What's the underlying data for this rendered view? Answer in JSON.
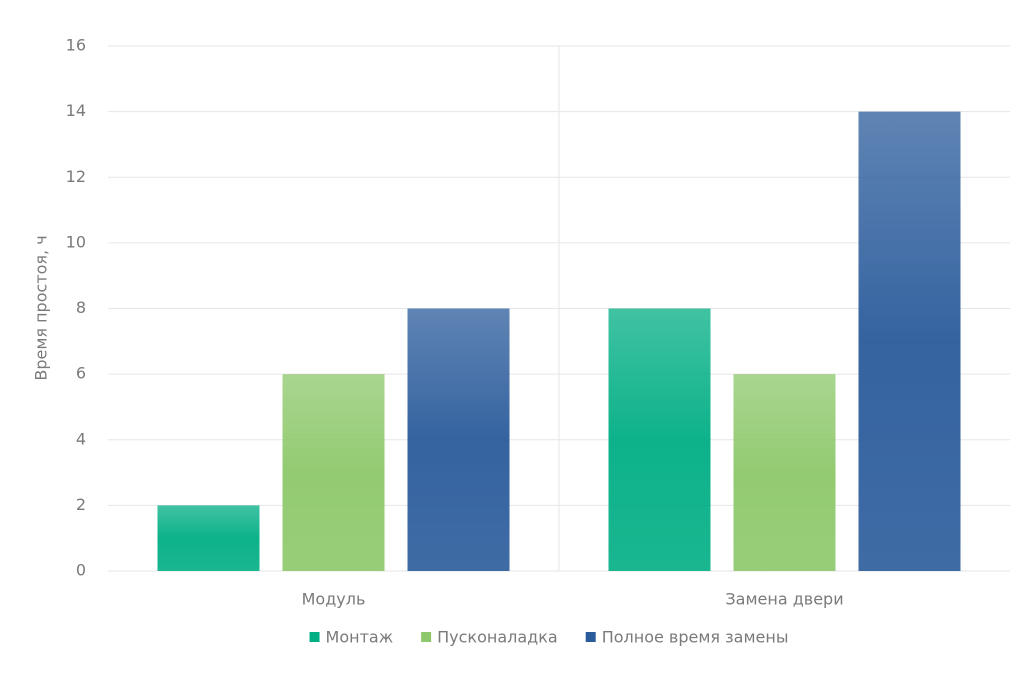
{
  "chart_data": {
    "type": "bar",
    "y_label": "Время простоя, ч",
    "categories": [
      "Модуль",
      "Замена двери"
    ],
    "series": [
      {
        "name": "Монтаж",
        "color": "#00ae84",
        "values": [
          2,
          8
        ]
      },
      {
        "name": "Пусконаладка",
        "color": "#8dc86a",
        "values": [
          6,
          6
        ]
      },
      {
        "name": "Полное время замены",
        "color": "#2a5b9b",
        "values": [
          8,
          14
        ]
      }
    ],
    "ylim": [
      0,
      16
    ],
    "yticks": [
      0,
      2,
      4,
      6,
      8,
      10,
      12,
      14,
      16
    ],
    "grid": true,
    "legend": "bottom"
  }
}
